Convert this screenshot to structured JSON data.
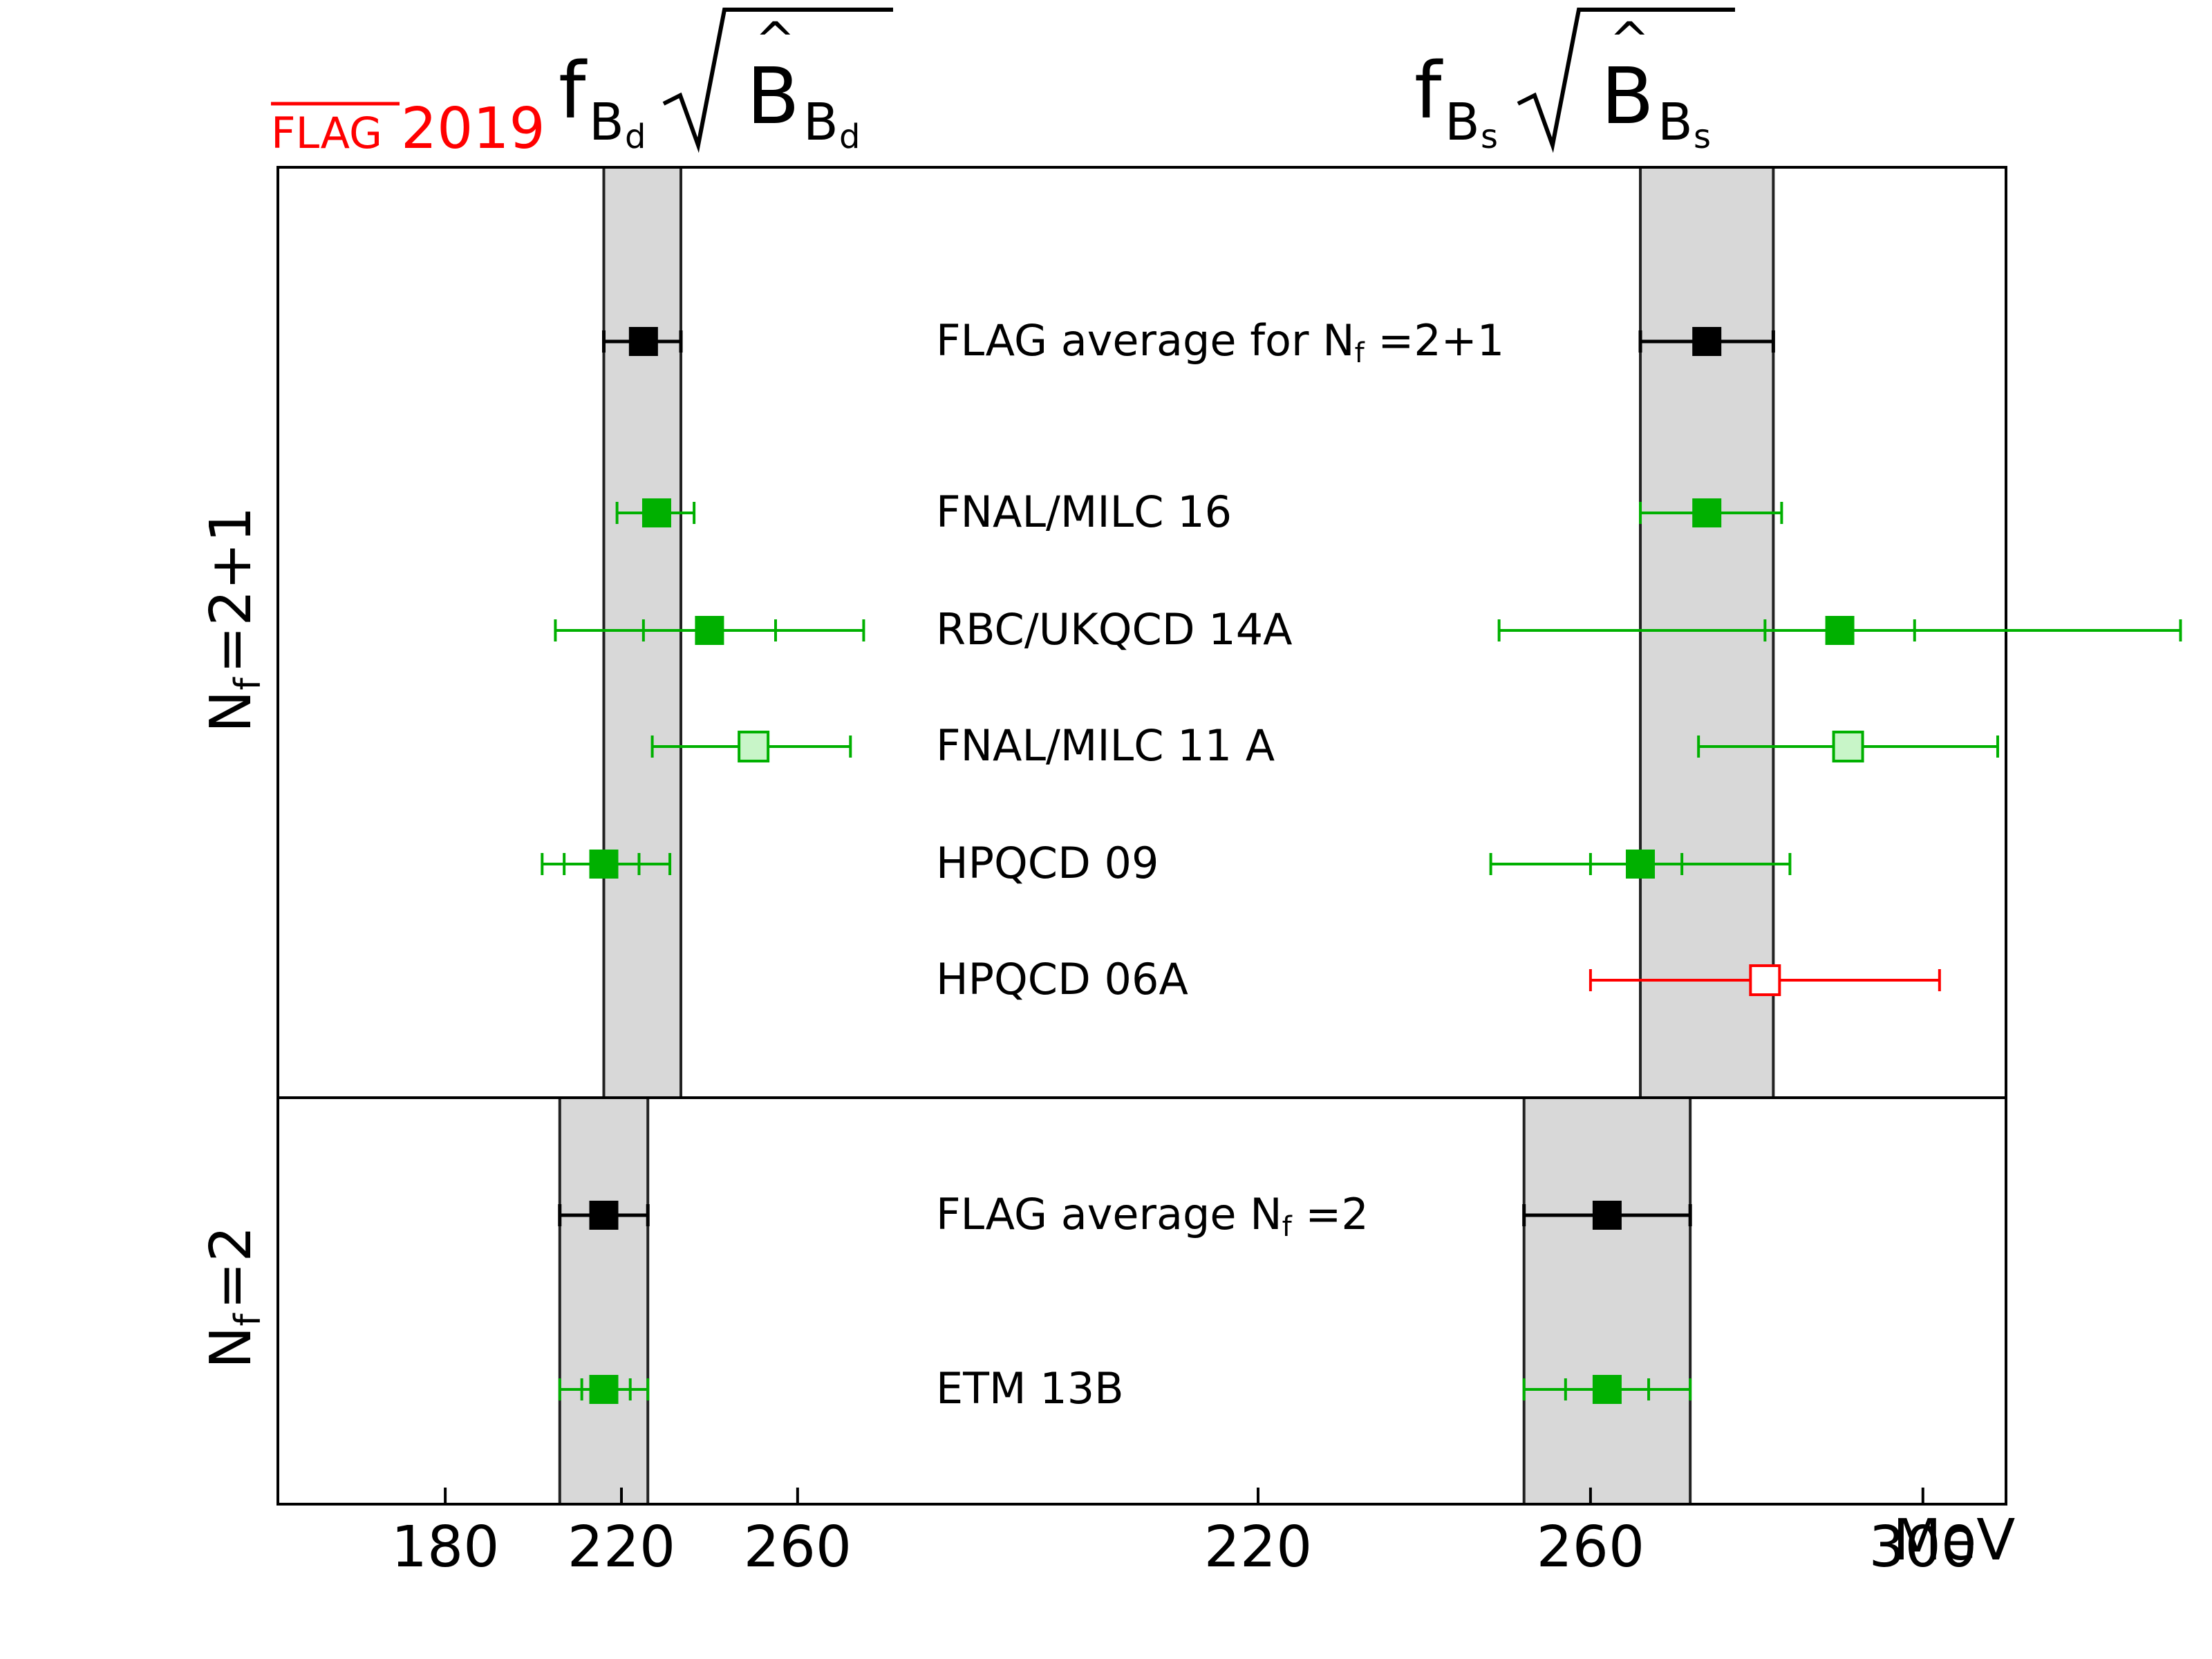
{
  "logo": {
    "text_over": "FLAG",
    "text_year": "2019",
    "color": "#ff0000"
  },
  "titles": {
    "left": {
      "f": "f",
      "f_sub": "B",
      "f_subsub": "d",
      "b": "B",
      "b_sub": "B",
      "b_subsub": "d"
    },
    "right": {
      "f": "f",
      "f_sub": "B",
      "f_subsub": "s",
      "b": "B",
      "b_sub": "B",
      "b_subsub": "s"
    }
  },
  "unit_label": "MeV",
  "group_labels": {
    "top": {
      "n": "N",
      "sub": "f",
      "rest": "=2+1"
    },
    "bottom": {
      "n": "N",
      "sub": "f",
      "rest": "=2"
    }
  },
  "colors": {
    "average": "#000000",
    "ok": "#00b000",
    "ok_light": "#c8f5c8",
    "excluded": "#ff0000",
    "band": "#d8d8d8"
  },
  "chart_data": [
    {
      "type": "scatter",
      "quantity": "fBd sqrt(BBd)",
      "xlim": [
        142,
        290
      ],
      "ticks": [
        "180",
        "220",
        "260"
      ],
      "band_top": {
        "lo": 216,
        "hi": 233.5
      },
      "band_bottom": {
        "lo": 206,
        "hi": 226
      },
      "points": [
        {
          "name": "FLAG average for Nf=2+1",
          "x": 225,
          "stat_lo": 216,
          "stat_hi": 233.5,
          "lo": 216,
          "hi": 233.5,
          "style": "average"
        },
        {
          "name": "FNAL/MILC 16",
          "x": 228,
          "stat_lo": 219,
          "stat_hi": 236.5,
          "lo": 219,
          "hi": 236.5,
          "style": "ok"
        },
        {
          "name": "RBC/UKQCD 14A",
          "x": 240,
          "stat_lo": 225,
          "stat_hi": 255,
          "lo": 205,
          "hi": 275,
          "style": "ok"
        },
        {
          "name": "FNAL/MILC 11 A",
          "x": 250,
          "stat_lo": 227,
          "stat_hi": 272,
          "lo": 227,
          "hi": 272,
          "style": "ok_light"
        },
        {
          "name": "HPQCD 09",
          "x": 216,
          "stat_lo": 207,
          "stat_hi": 224,
          "lo": 202,
          "hi": 231,
          "style": "ok"
        },
        {
          "name": "FLAG average Nf=2",
          "x": 216,
          "stat_lo": 206,
          "stat_hi": 226,
          "lo": 206,
          "hi": 226,
          "style": "average"
        },
        {
          "name": "ETM 13B",
          "x": 216,
          "stat_lo": 211,
          "stat_hi": 222,
          "lo": 206,
          "hi": 226,
          "style": "ok"
        }
      ]
    },
    {
      "type": "scatter",
      "quantity": "fBs sqrt(BBs)",
      "xlim": [
        220,
        310
      ],
      "ticks": [
        "220",
        "260",
        "300"
      ],
      "band_top": {
        "lo": 266,
        "hi": 282
      },
      "band_bottom": {
        "lo": 252,
        "hi": 272
      },
      "points": [
        {
          "name": "FLAG average for Nf=2+1",
          "x": 274,
          "stat_lo": 266,
          "stat_hi": 282,
          "lo": 266,
          "hi": 282,
          "style": "average"
        },
        {
          "name": "FNAL/MILC 16",
          "x": 274,
          "stat_lo": 266,
          "stat_hi": 283,
          "lo": 266,
          "hi": 283,
          "style": "ok"
        },
        {
          "name": "RBC/UKQCD 14A",
          "x": 290,
          "stat_lo": 281,
          "stat_hi": 299,
          "lo": 249,
          "hi": 331,
          "style": "ok"
        },
        {
          "name": "FNAL/MILC 11 A",
          "x": 291,
          "stat_lo": 273,
          "stat_hi": 309,
          "lo": 273,
          "hi": 309,
          "style": "ok_light"
        },
        {
          "name": "HPQCD 09",
          "x": 266,
          "stat_lo": 260,
          "stat_hi": 271,
          "lo": 248,
          "hi": 284,
          "style": "ok"
        },
        {
          "name": "HPQCD 06A",
          "x": 281,
          "stat_lo": 260,
          "stat_hi": 302,
          "lo": 260,
          "hi": 302,
          "style": "excluded"
        },
        {
          "name": "FLAG average Nf=2",
          "x": 262,
          "stat_lo": 252,
          "stat_hi": 272,
          "lo": 252,
          "hi": 272,
          "style": "average"
        },
        {
          "name": "ETM 13B",
          "x": 262,
          "stat_lo": 257,
          "stat_hi": 267,
          "lo": 252,
          "hi": 272,
          "style": "ok"
        }
      ]
    }
  ],
  "rows": [
    {
      "label": "FLAG average for ",
      "label_n": "N",
      "label_sub": "f",
      "label_rest": " =2+1"
    },
    {
      "label": "FNAL/MILC 16"
    },
    {
      "label": "RBC/UKQCD 14A"
    },
    {
      "label": "FNAL/MILC 11 A"
    },
    {
      "label": "HPQCD 09"
    },
    {
      "label": "HPQCD 06A"
    },
    {
      "label": "FLAG average ",
      "label_n": "N",
      "label_sub": "f",
      "label_rest": " =2"
    },
    {
      "label": "ETM 13B"
    }
  ]
}
